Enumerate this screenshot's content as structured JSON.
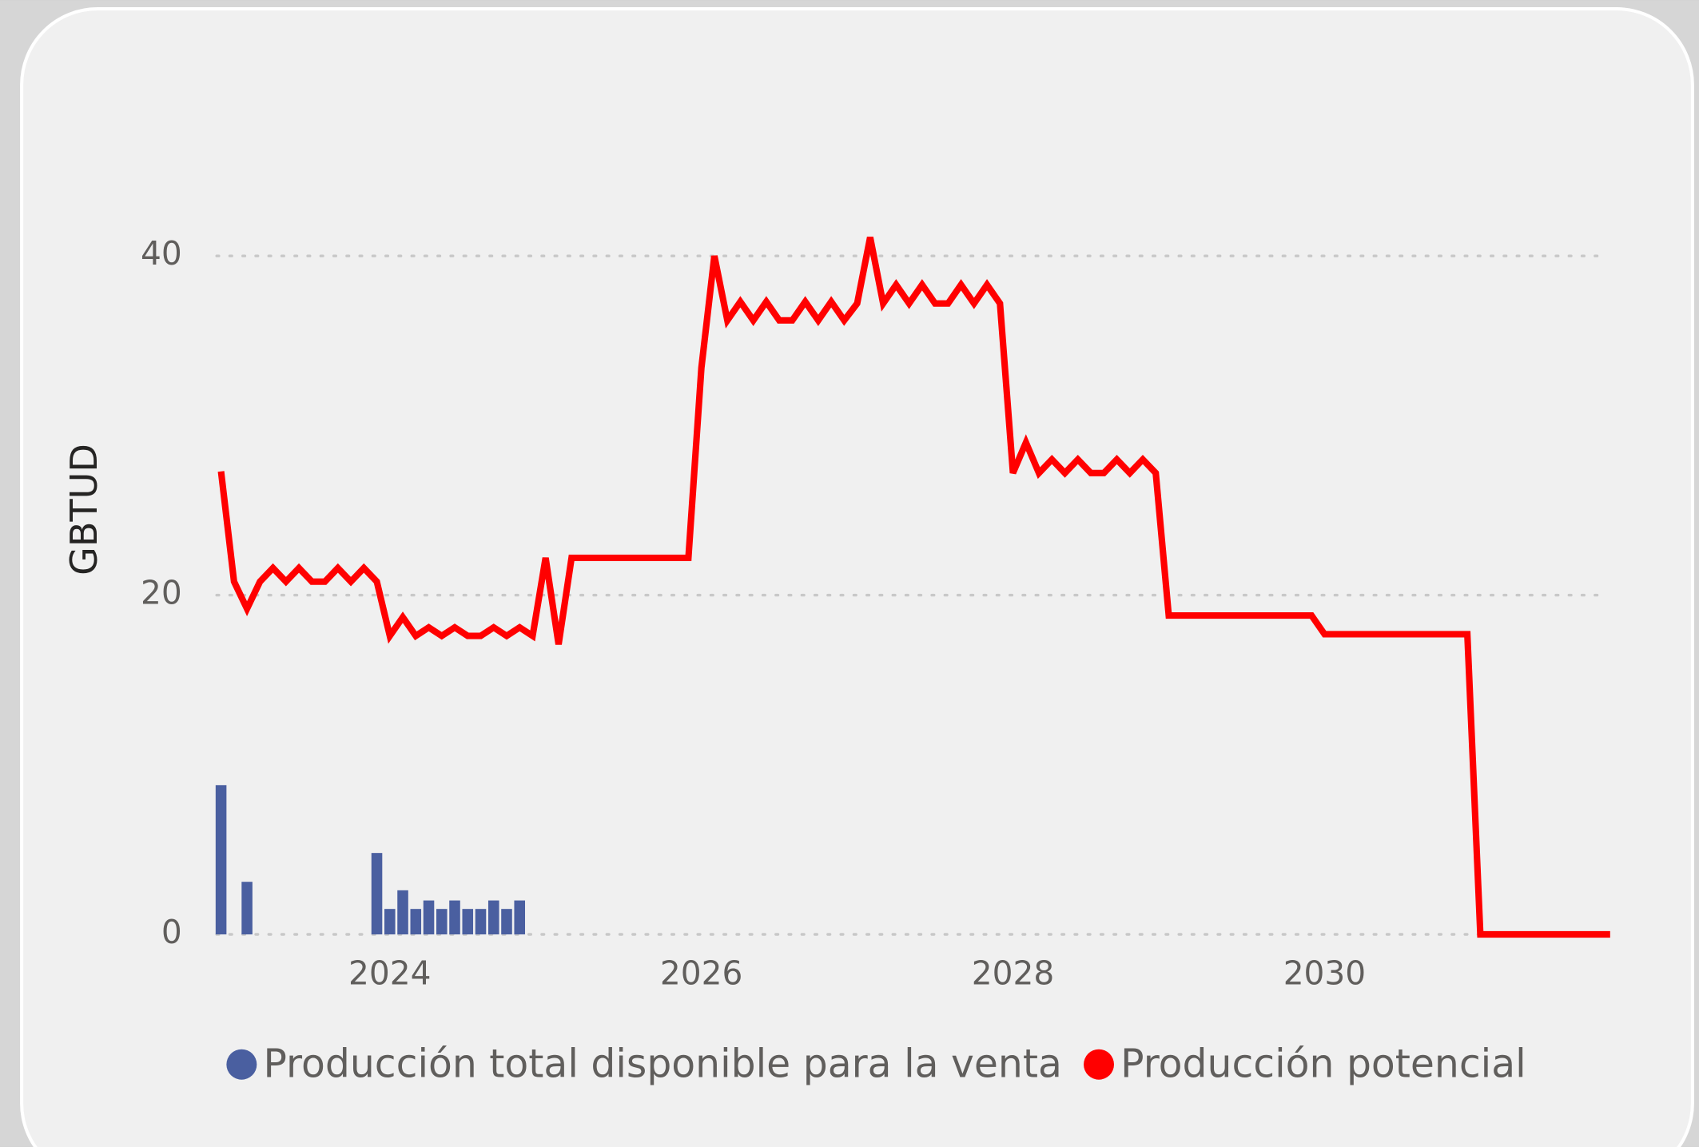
{
  "chart_data": {
    "type": "combo",
    "y_label": "GBTUD",
    "x": [
      "2022-12",
      "2023-01",
      "2023-02",
      "2023-03",
      "2023-04",
      "2023-05",
      "2023-06",
      "2023-07",
      "2023-08",
      "2023-09",
      "2023-10",
      "2023-11",
      "2023-12",
      "2024-01",
      "2024-02",
      "2024-03",
      "2024-04",
      "2024-05",
      "2024-06",
      "2024-07",
      "2024-08",
      "2024-09",
      "2024-10",
      "2024-11",
      "2024-12",
      "2025-01",
      "2025-02",
      "2025-03",
      "2025-04",
      "2025-05",
      "2025-06",
      "2025-07",
      "2025-08",
      "2025-09",
      "2025-10",
      "2025-11",
      "2025-12",
      "2026-01",
      "2026-02",
      "2026-03",
      "2026-04",
      "2026-05",
      "2026-06",
      "2026-07",
      "2026-08",
      "2026-09",
      "2026-10",
      "2026-11",
      "2026-12",
      "2027-01",
      "2027-02",
      "2027-03",
      "2027-04",
      "2027-05",
      "2027-06",
      "2027-07",
      "2027-08",
      "2027-09",
      "2027-10",
      "2027-11",
      "2027-12",
      "2028-01",
      "2028-02",
      "2028-03",
      "2028-04",
      "2028-05",
      "2028-06",
      "2028-07",
      "2028-08",
      "2028-09",
      "2028-10",
      "2028-11",
      "2028-12",
      "2029-01",
      "2029-02",
      "2029-03",
      "2029-04",
      "2029-05",
      "2029-06",
      "2029-07",
      "2029-08",
      "2029-09",
      "2029-10",
      "2029-11",
      "2029-12",
      "2030-01",
      "2030-02",
      "2030-03",
      "2030-04",
      "2030-05",
      "2030-06",
      "2030-07",
      "2030-08",
      "2030-09",
      "2030-10",
      "2030-11",
      "2030-12",
      "2031-01",
      "2031-02",
      "2031-03",
      "2031-04",
      "2031-05",
      "2031-06",
      "2031-07",
      "2031-08",
      "2031-09",
      "2031-10",
      "2031-11"
    ],
    "xlim": [
      "2022-12",
      "2031-11"
    ],
    "xticks": [
      {
        "value": "2024-01",
        "label": "2024"
      },
      {
        "value": "2026-01",
        "label": "2026"
      },
      {
        "value": "2028-01",
        "label": "2028"
      },
      {
        "value": "2030-01",
        "label": "2030"
      }
    ],
    "ylim": [
      0,
      40
    ],
    "yticks": [
      0,
      20,
      40
    ],
    "grid": true,
    "series": [
      {
        "name": "Producción total disponible para la venta",
        "type": "bar",
        "color": "#4a5fa0",
        "values": [
          8.8,
          null,
          3.1,
          null,
          null,
          null,
          null,
          null,
          null,
          null,
          null,
          null,
          4.8,
          1.5,
          2.6,
          1.5,
          2,
          1.5,
          2,
          1.5,
          1.5,
          2,
          1.5,
          2,
          null,
          null,
          null,
          null,
          null,
          null,
          null,
          null,
          null,
          null,
          null,
          null,
          null,
          null,
          null,
          null,
          null,
          null,
          null,
          null,
          null,
          null,
          null,
          null,
          null,
          null,
          null,
          null,
          null,
          null,
          null,
          null,
          null,
          null,
          null,
          null,
          null,
          null,
          null,
          null,
          null,
          null,
          null,
          null,
          null,
          null,
          null,
          null,
          null,
          null,
          null,
          null,
          null,
          null,
          null,
          null,
          null,
          null,
          null,
          null,
          null,
          null,
          null,
          null,
          null,
          null,
          null,
          null,
          null,
          null,
          null,
          null,
          null,
          null,
          null,
          null,
          null,
          null,
          null,
          null,
          null,
          null,
          null,
          null
        ]
      },
      {
        "name": "Producción potencial",
        "type": "line",
        "color": "#ff0000",
        "values": [
          27.3,
          20.8,
          19.2,
          20.8,
          21.6,
          20.8,
          21.6,
          20.8,
          20.8,
          21.6,
          20.8,
          21.6,
          20.8,
          17.6,
          18.7,
          17.6,
          18.1,
          17.6,
          18.1,
          17.6,
          17.6,
          18.1,
          17.6,
          18.1,
          17.6,
          22.2,
          17.1,
          22.2,
          22.2,
          22.2,
          22.2,
          22.2,
          22.2,
          22.2,
          22.2,
          22.2,
          22.2,
          33.4,
          40,
          36.2,
          37.3,
          36.2,
          37.3,
          36.2,
          36.2,
          37.3,
          36.2,
          37.3,
          36.2,
          37.2,
          41.1,
          37.2,
          38.3,
          37.2,
          38.3,
          37.2,
          37.2,
          38.3,
          37.2,
          38.3,
          37.2,
          27.2,
          29,
          27.2,
          28,
          27.2,
          28,
          27.2,
          27.2,
          28,
          27.2,
          28,
          27.2,
          18.8,
          18.8,
          18.8,
          18.8,
          18.8,
          18.8,
          18.8,
          18.8,
          18.8,
          18.8,
          18.8,
          18.8,
          17.7,
          17.7,
          17.7,
          17.7,
          17.7,
          17.7,
          17.7,
          17.7,
          17.7,
          17.7,
          17.7,
          17.7,
          0,
          0,
          0,
          0,
          0,
          0,
          0,
          0,
          0,
          0,
          0
        ]
      }
    ]
  }
}
